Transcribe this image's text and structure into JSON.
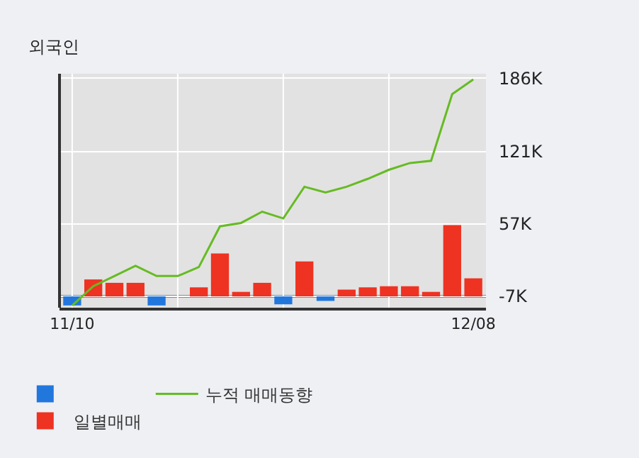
{
  "chart_data": {
    "type": "bar",
    "title": "외국인",
    "categories": [
      "11/10",
      null,
      null,
      null,
      null,
      null,
      null,
      null,
      null,
      null,
      null,
      null,
      null,
      null,
      null,
      null,
      null,
      null,
      null,
      "12/08"
    ],
    "series": [
      {
        "name": "일별매매",
        "color": "#ee3322",
        "colors": [
          "#2277dd",
          "#ee3322",
          "#ee3322",
          "#ee3322",
          "#2277dd",
          "#ee3322",
          "#ee3322",
          "#ee3322",
          "#ee3322",
          "#ee3322",
          "#2277dd",
          "#ee3322",
          "#2277dd",
          "#ee3322",
          "#ee3322",
          "#ee3322",
          "#ee3322",
          "#ee3322",
          "#ee3322",
          "#ee3322"
        ],
        "base": [
          -7,
          -7,
          -7,
          -7,
          -7,
          null,
          -7,
          -7,
          -7,
          -7,
          -7,
          -7,
          -7,
          -7,
          -7,
          -7,
          -7,
          -7,
          -7,
          -7
        ],
        "values": [
          -8,
          15,
          12,
          12,
          -8,
          null,
          8,
          38,
          4,
          12,
          -7,
          31,
          -4,
          6,
          8,
          9,
          9,
          4,
          63,
          16
        ]
      },
      {
        "name": "누적 매매동향",
        "type": "line",
        "color": "#66bb22",
        "values": [
          -15,
          2,
          11,
          20,
          11,
          11,
          19,
          55,
          58,
          68,
          62,
          90,
          85,
          90,
          97,
          105,
          111,
          113,
          172,
          185
        ]
      }
    ],
    "ylim": [
      -17,
      190
    ],
    "yticks": [
      {
        "value": -7,
        "label": "-7K"
      },
      {
        "value": 57,
        "label": "57K"
      },
      {
        "value": 121,
        "label": "121K"
      },
      {
        "value": 186,
        "label": "186K"
      }
    ],
    "ref_lines": [
      {
        "axis": "y",
        "value": -7,
        "color": "#888888"
      }
    ],
    "grid": true,
    "legend": "bottom"
  }
}
